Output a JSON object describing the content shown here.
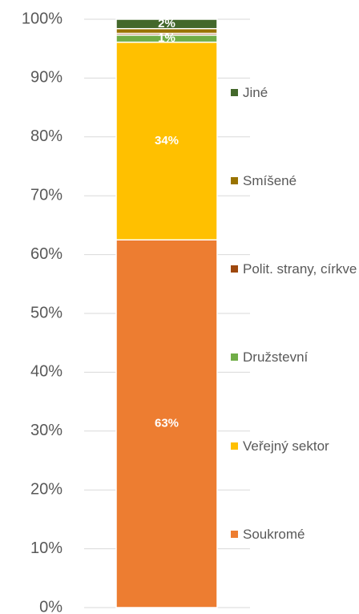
{
  "chart_data": {
    "type": "bar",
    "stacked": true,
    "categories": [
      null
    ],
    "series": [
      {
        "name": "Soukromé",
        "color": "#ed7d31",
        "values": [
          62.5
        ],
        "value_labels": [
          "63%"
        ]
      },
      {
        "name": "Veřejný sektor",
        "color": "#ffc000",
        "values": [
          33.6
        ],
        "value_labels": [
          "34%"
        ]
      },
      {
        "name": "Družstevní",
        "color": "#70ad47",
        "values": [
          1.2
        ],
        "value_labels": [
          "1%"
        ]
      },
      {
        "name": "Polit. strany, církve",
        "color": "#9e480e",
        "values": [
          0.3
        ],
        "value_labels": [
          null
        ]
      },
      {
        "name": "Smíšené",
        "color": "#997300",
        "values": [
          0.8
        ],
        "value_labels": [
          null
        ]
      },
      {
        "name": "Jiné",
        "color": "#43682b",
        "values": [
          1.6
        ],
        "value_labels": [
          "2%"
        ]
      }
    ],
    "ylim": [
      0,
      100
    ],
    "yticks": [
      {
        "value": 0,
        "label": "0%"
      },
      {
        "value": 10,
        "label": "10%"
      },
      {
        "value": 20,
        "label": "20%"
      },
      {
        "value": 30,
        "label": "30%"
      },
      {
        "value": 40,
        "label": "40%"
      },
      {
        "value": 50,
        "label": "50%"
      },
      {
        "value": 60,
        "label": "60%"
      },
      {
        "value": 70,
        "label": "70%"
      },
      {
        "value": 80,
        "label": "80%"
      },
      {
        "value": 90,
        "label": "90%"
      },
      {
        "value": 100,
        "label": "100%"
      }
    ],
    "grid": true,
    "legend": "right"
  }
}
